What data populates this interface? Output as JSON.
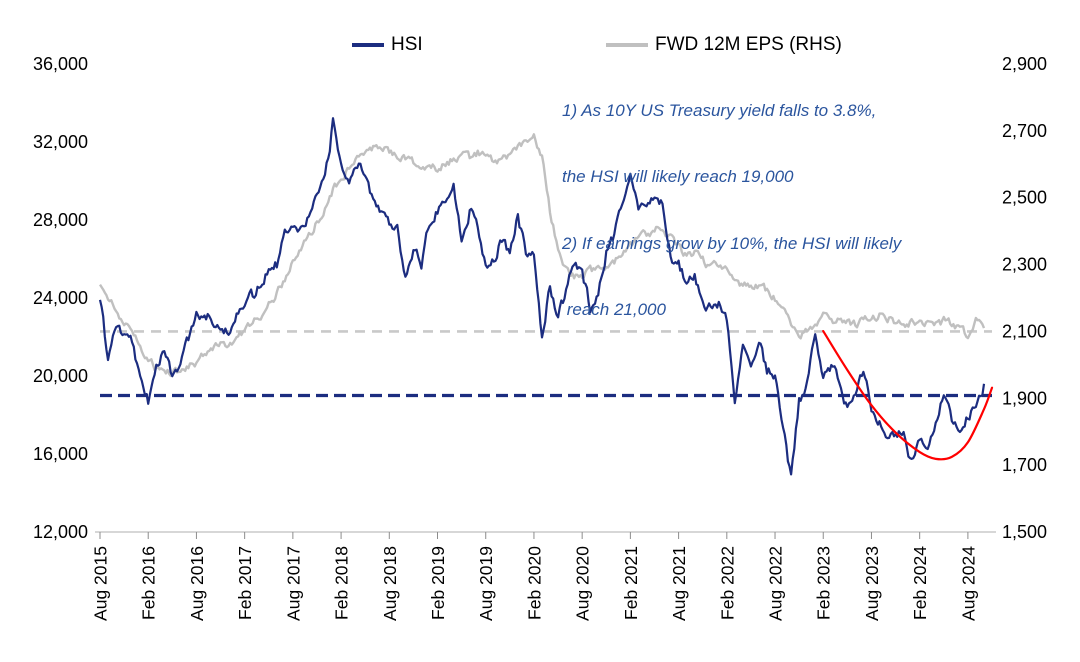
{
  "legend": {
    "items": [
      {
        "label": "HSI",
        "color": "#1c2d80",
        "swatch_width": 32
      },
      {
        "label": "FWD 12M EPS (RHS)",
        "color": "#c0c0c0",
        "swatch_width": 42
      }
    ]
  },
  "annotation": {
    "color": "#2b559e",
    "line1": "1) As 10Y US Treasury yield falls to 3.8%,",
    "line2": "the HSI will likely reach 19,000",
    "line3": "2) If earnings grow by 10%, the HSI will likely",
    "line4": " reach 21,000"
  },
  "chart_data": {
    "type": "line",
    "title": "",
    "x_axis": {
      "unit": "months since Aug 2015",
      "domain_months": [
        0,
        111
      ],
      "tick_positions_months": [
        0,
        6,
        12,
        18,
        24,
        30,
        36,
        42,
        48,
        54,
        60,
        66,
        72,
        78,
        84,
        90,
        96,
        102,
        108
      ],
      "tick_labels": [
        "Aug 2015",
        "Feb 2016",
        "Aug 2016",
        "Feb 2017",
        "Aug 2017",
        "Feb 2018",
        "Aug 2018",
        "Feb 2019",
        "Aug 2019",
        "Feb 2020",
        "Aug 2020",
        "Feb 2021",
        "Aug 2021",
        "Feb 2022",
        "Aug 2022",
        "Feb 2023",
        "Aug 2023",
        "Feb 2024",
        "Aug 2024"
      ]
    },
    "left_y_axis": {
      "series": "HSI",
      "min": 12000,
      "max": 36000,
      "tick_interval": 4000,
      "tick_labels": [
        "36,000",
        "32,000",
        "28,000",
        "24,000",
        "20,000",
        "16,000",
        "12,000"
      ]
    },
    "right_y_axis": {
      "series": "FWD 12M EPS",
      "min": 1500,
      "max": 2900,
      "tick_interval": 200,
      "tick_labels": [
        "2,900",
        "2,700",
        "2,500",
        "2,300",
        "2,100",
        "1,900",
        "1,700",
        "1,500"
      ]
    },
    "series": [
      {
        "name": "HSI",
        "axis": "left",
        "color": "#1c2d80",
        "width": 2.2,
        "jitter": 260,
        "monthly_values": [
          23900,
          20900,
          22600,
          22000,
          21900,
          19700,
          18700,
          20800,
          21100,
          19900,
          20800,
          21900,
          23000,
          23300,
          22900,
          22800,
          22000,
          23400,
          23700,
          24100,
          24600,
          25700,
          25800,
          27300,
          28000,
          27600,
          28200,
          29200,
          29900,
          33000,
          30800,
          30100,
          30800,
          30500,
          29000,
          28600,
          27900,
          27800,
          25000,
          26500,
          25800,
          27900,
          28600,
          29100,
          29800,
          26900,
          28500,
          27800,
          25700,
          26100,
          26900,
          26300,
          28200,
          26300,
          26100,
          21900,
          24600,
          23000,
          24400,
          25800,
          25200,
          23500,
          24100,
          26300,
          27200,
          29000,
          30600,
          28600,
          28800,
          29200,
          28800,
          26000,
          25900,
          24600,
          25400,
          23500,
          23400,
          23800,
          22800,
          18800,
          21800,
          20700,
          21900,
          20300,
          20000,
          17300,
          14700,
          18600,
          19800,
          22300,
          19800,
          20400,
          19900,
          18200,
          18900,
          20100,
          18400,
          17800,
          17100,
          17000,
          17000,
          15500,
          16500,
          16500,
          17800,
          19300,
          17900,
          17300,
          17900,
          18600,
          19600
        ]
      },
      {
        "name": "FWD 12M EPS (RHS)",
        "axis": "right",
        "color": "#c0c0c0",
        "width": 2.4,
        "jitter": 11,
        "monthly_values": [
          2240,
          2205,
          2160,
          2125,
          2095,
          2055,
          2015,
          1990,
          1985,
          1975,
          1980,
          1990,
          2010,
          2030,
          2050,
          2060,
          2065,
          2080,
          2100,
          2125,
          2150,
          2180,
          2215,
          2260,
          2305,
          2345,
          2385,
          2425,
          2460,
          2520,
          2565,
          2585,
          2610,
          2635,
          2655,
          2645,
          2635,
          2625,
          2615,
          2605,
          2595,
          2585,
          2590,
          2600,
          2620,
          2630,
          2620,
          2635,
          2620,
          2610,
          2620,
          2630,
          2645,
          2665,
          2690,
          2620,
          2460,
          2350,
          2290,
          2260,
          2270,
          2280,
          2290,
          2300,
          2310,
          2330,
          2355,
          2380,
          2390,
          2400,
          2410,
          2380,
          2350,
          2320,
          2330,
          2310,
          2290,
          2300,
          2290,
          2255,
          2240,
          2230,
          2240,
          2220,
          2200,
          2160,
          2115,
          2090,
          2100,
          2110,
          2140,
          2130,
          2140,
          2130,
          2120,
          2130,
          2140,
          2150,
          2140,
          2130,
          2120,
          2130,
          2120,
          2130,
          2120,
          2130,
          2120,
          2100,
          2090,
          2130,
          2110
        ]
      },
      {
        "name": "projected-recovery-curve",
        "axis": "left",
        "color": "#ff0000",
        "width": 2.2,
        "smooth": true,
        "x_months": [
          90,
          93,
          96,
          99,
          102,
          104,
          106,
          108,
          110,
          111
        ],
        "values": [
          22300,
          20300,
          18500,
          17100,
          16100,
          15750,
          15850,
          16600,
          18300,
          19400
        ]
      }
    ],
    "reference_lines": [
      {
        "name": "hsi-19000-target",
        "axis": "left",
        "value": 19000,
        "color": "#1c2d80",
        "dash": [
          12,
          6
        ],
        "width": 3.2
      },
      {
        "name": "eps-2100-level",
        "axis": "right",
        "value": 2100,
        "color": "#c9c9c9",
        "dash": [
          10,
          7
        ],
        "width": 2.6
      }
    ]
  }
}
